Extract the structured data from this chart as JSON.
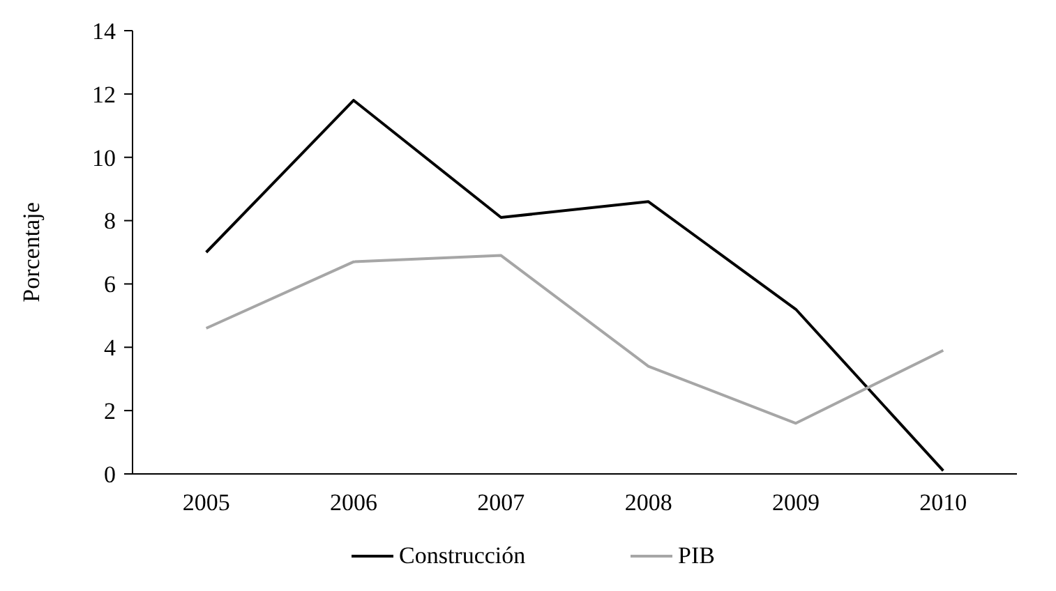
{
  "chart_data": {
    "type": "line",
    "ylabel": "Porcentaje",
    "categories": [
      "2005",
      "2006",
      "2007",
      "2008",
      "2009",
      "2010"
    ],
    "series": [
      {
        "name": "Construcción",
        "color": "#000000",
        "values": [
          7.0,
          11.8,
          8.1,
          8.6,
          5.2,
          0.1
        ]
      },
      {
        "name": "PIB",
        "color": "#a6a6a6",
        "values": [
          4.6,
          6.7,
          6.9,
          3.4,
          1.6,
          3.9
        ]
      }
    ],
    "ylim": [
      0,
      14
    ],
    "yticks": [
      0,
      2,
      4,
      6,
      8,
      10,
      12,
      14
    ],
    "grid": false,
    "legend": "bottom",
    "marker": "none",
    "line_style": "solid"
  }
}
